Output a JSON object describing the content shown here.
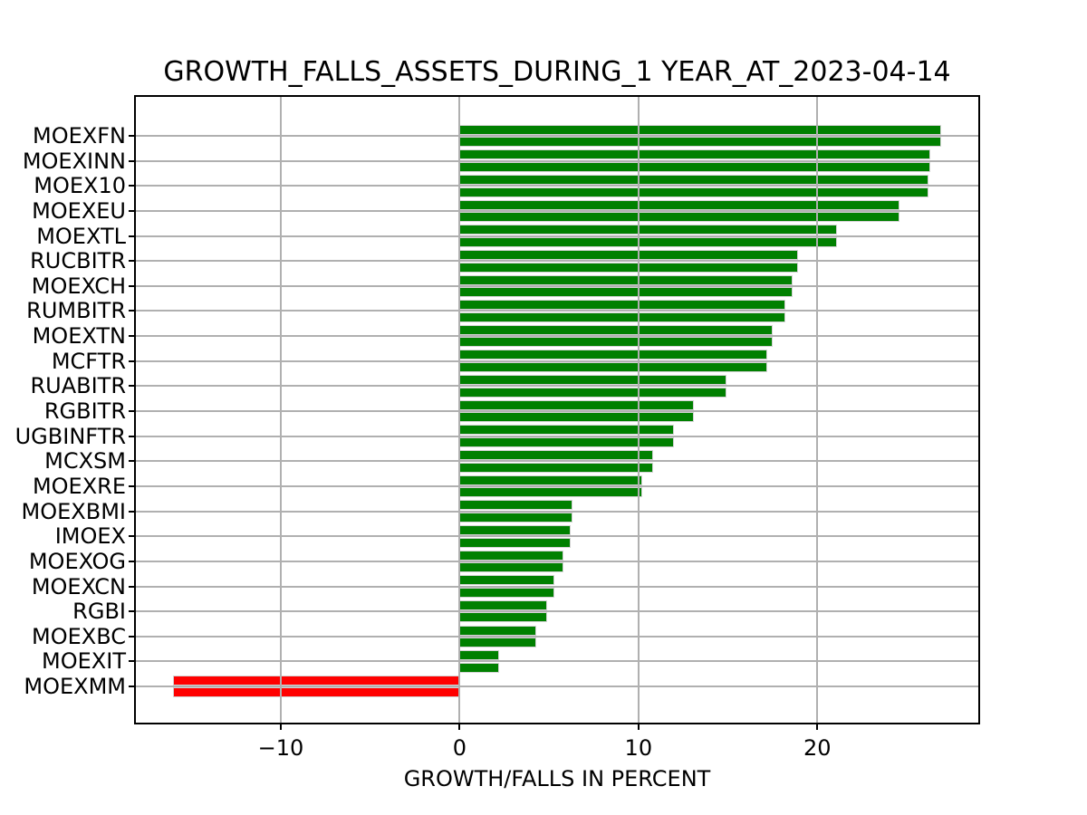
{
  "chart_data": {
    "type": "bar",
    "orientation": "horizontal",
    "title": "GROWTH_FALLS_ASSETS_DURING_1 YEAR_AT_2023-04-14",
    "xlabel": "GROWTH/FALLS IN PERCENT",
    "categories": [
      "MOEXFN",
      "MOEXINN",
      "MOEX10",
      "MOEXEU",
      "MOEXTL",
      "RUCBITR",
      "MOEXCH",
      "RUMBITR",
      "MOEXTN",
      "MCFTR",
      "RUABITR",
      "RGBITR",
      "UGBINFTR",
      "MCXSM",
      "MOEXRE",
      "MOEXBMI",
      "IMOEX",
      "MOEXOG",
      "MOEXCN",
      "RGBI",
      "MOEXBC",
      "MOEXIT",
      "MOEXMM"
    ],
    "values": [
      26.9,
      26.3,
      26.2,
      24.6,
      21.1,
      18.9,
      18.6,
      18.2,
      17.5,
      17.2,
      14.9,
      13.1,
      12.0,
      10.8,
      10.2,
      6.3,
      6.2,
      5.8,
      5.3,
      4.9,
      4.3,
      2.2,
      -16.0
    ],
    "bars_per_category": 2,
    "x_ticks": [
      -10,
      0,
      10,
      20
    ],
    "x_tick_labels": [
      "−10",
      "0",
      "10",
      "20"
    ],
    "xlim": [
      -18.1,
      29.0
    ],
    "grid": true,
    "grid_above_bars": true,
    "legend": false,
    "colors": {
      "positive": "#008000",
      "negative": "#ff0000",
      "grid": "#b0b0b0",
      "bar_edge": "#d3d3d3",
      "spine": "#000000",
      "background": "#ffffff"
    }
  }
}
